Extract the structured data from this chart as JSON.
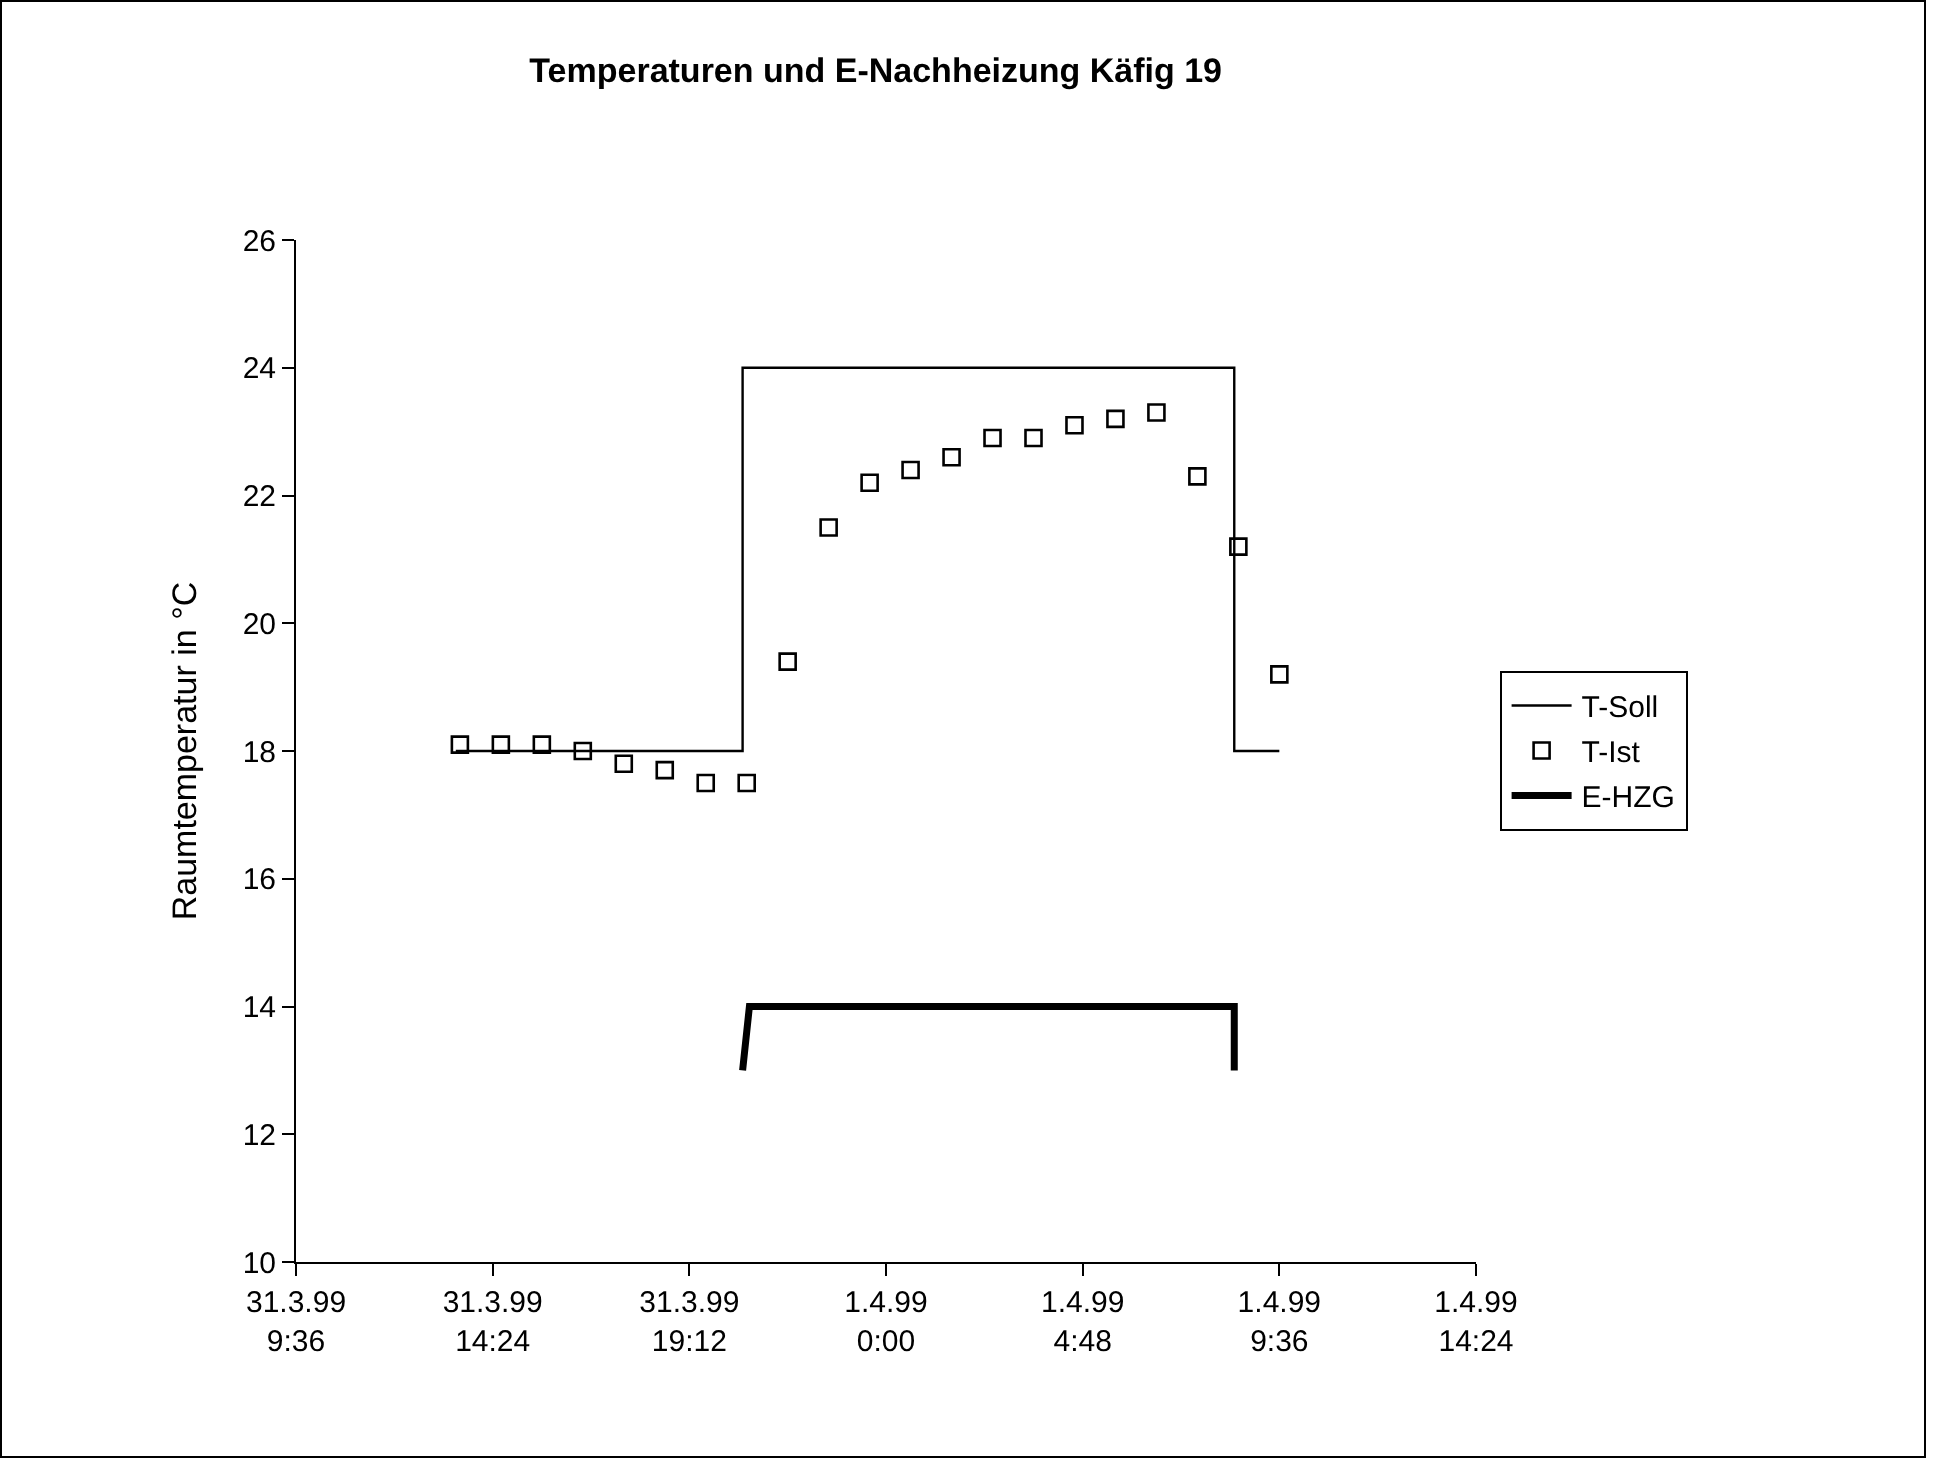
{
  "chart_data": {
    "type": "line",
    "title": "Temperaturen und E-Nachheizung Käfig 19",
    "ylabel": "Raumtemperatur in °C",
    "xlim": [
      "1999-03-31T09:36",
      "1999-04-01T14:24"
    ],
    "xticks": [
      {
        "value": "1999-03-31T09:36",
        "label": "31.3.99\n9:36"
      },
      {
        "value": "1999-03-31T14:24",
        "label": "31.3.99\n14:24"
      },
      {
        "value": "1999-03-31T19:12",
        "label": "31.3.99\n19:12"
      },
      {
        "value": "1999-04-01T00:00",
        "label": "1.4.99\n0:00"
      },
      {
        "value": "1999-04-01T04:48",
        "label": "1.4.99\n4:48"
      },
      {
        "value": "1999-04-01T09:36",
        "label": "1.4.99\n9:36"
      },
      {
        "value": "1999-04-01T14:24",
        "label": "1.4.99\n14:24"
      }
    ],
    "ylim": [
      10,
      26
    ],
    "yticks": [
      10,
      12,
      14,
      16,
      18,
      20,
      22,
      24,
      26
    ],
    "grid": false,
    "legend": "right",
    "series": [
      {
        "name": "T-Soll",
        "color": "#000000",
        "marker": "none",
        "line_style": "solid",
        "x": [
          "1999-03-31T13:30",
          "1999-03-31T20:30",
          "1999-03-31T20:30",
          "1999-04-01T08:30",
          "1999-04-01T08:30",
          "1999-04-01T09:36"
        ],
        "values": [
          18,
          18,
          24,
          24,
          18,
          18
        ]
      },
      {
        "name": "T-Ist",
        "type": "scatter",
        "color": "#000000",
        "marker": "square",
        "x": [
          "1999-03-31T13:36",
          "1999-03-31T14:36",
          "1999-03-31T15:36",
          "1999-03-31T16:36",
          "1999-03-31T17:36",
          "1999-03-31T18:36",
          "1999-03-31T19:36",
          "1999-03-31T20:36",
          "1999-03-31T21:36",
          "1999-03-31T22:36",
          "1999-03-31T23:36",
          "1999-04-01T00:36",
          "1999-04-01T01:36",
          "1999-04-01T02:36",
          "1999-04-01T03:36",
          "1999-04-01T04:36",
          "1999-04-01T05:36",
          "1999-04-01T06:36",
          "1999-04-01T07:36",
          "1999-04-01T08:36",
          "1999-04-01T09:36"
        ],
        "values": [
          18.1,
          18.1,
          18.1,
          18.0,
          17.8,
          17.7,
          17.5,
          17.5,
          19.4,
          21.5,
          22.2,
          22.4,
          22.6,
          22.9,
          22.9,
          23.1,
          23.2,
          23.3,
          22.3,
          21.2,
          19.2
        ]
      },
      {
        "name": "E-HZG",
        "color": "#000000",
        "marker": "none",
        "line_style": "solid",
        "x": [
          "1999-03-31T20:30",
          "1999-03-31T20:40",
          "1999-04-01T08:30",
          "1999-04-01T08:30"
        ],
        "values": [
          13,
          14,
          14,
          13
        ]
      }
    ]
  }
}
